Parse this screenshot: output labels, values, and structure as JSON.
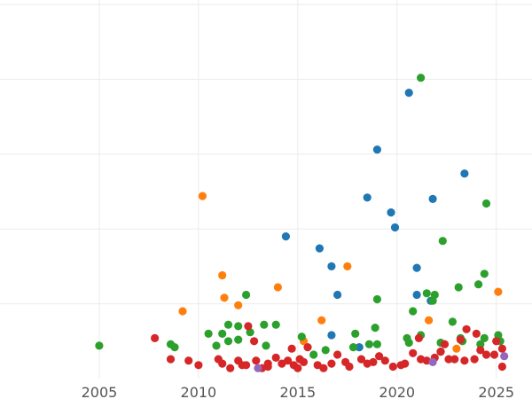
{
  "chart_data": {
    "type": "scatter",
    "title": "",
    "xlabel": "",
    "ylabel": "",
    "xlim": [
      2000,
      2026.8
    ],
    "ylim": [
      0,
      2.5
    ],
    "grid": true,
    "x_ticks": [
      2005,
      2010,
      2015,
      2020,
      2025
    ],
    "x_tick_labels": [
      "2005",
      "2010",
      "2015",
      "2020",
      "2025"
    ],
    "y_grid": [
      0.5,
      1.0,
      1.5,
      2.0,
      2.5
    ],
    "colors": {
      "blue": "#1f77b4",
      "orange": "#ff7f0e",
      "green": "#2ca02c",
      "red": "#d62728",
      "purple": "#9467bd"
    },
    "series": [
      {
        "color": "#1f77b4",
        "points": [
          [
            2014.4,
            0.95
          ],
          [
            2016.1,
            0.87
          ],
          [
            2016.7,
            0.75
          ],
          [
            2017.0,
            0.56
          ],
          [
            2016.7,
            0.29
          ],
          [
            2018.5,
            1.21
          ],
          [
            2019.0,
            1.53
          ],
          [
            2019.7,
            1.11
          ],
          [
            2019.9,
            1.01
          ],
          [
            2020.6,
            1.91
          ],
          [
            2021.0,
            0.74
          ],
          [
            2021.0,
            0.56
          ],
          [
            2021.7,
            0.52
          ],
          [
            2021.8,
            1.2
          ],
          [
            2023.4,
            1.37
          ],
          [
            2018.1,
            0.21
          ],
          [
            2022.2,
            0.18
          ]
        ]
      },
      {
        "color": "#ff7f0e",
        "points": [
          [
            2010.2,
            1.22
          ],
          [
            2009.2,
            0.45
          ],
          [
            2011.2,
            0.69
          ],
          [
            2011.3,
            0.54
          ],
          [
            2012.0,
            0.49
          ],
          [
            2014.0,
            0.61
          ],
          [
            2016.2,
            0.39
          ],
          [
            2017.5,
            0.75
          ],
          [
            2021.6,
            0.39
          ],
          [
            2025.1,
            0.58
          ],
          [
            2015.3,
            0.25
          ],
          [
            2023.0,
            0.2
          ]
        ]
      },
      {
        "color": "#2ca02c",
        "points": [
          [
            2005.0,
            0.22
          ],
          [
            2008.6,
            0.23
          ],
          [
            2008.8,
            0.21
          ],
          [
            2010.5,
            0.3
          ],
          [
            2010.9,
            0.22
          ],
          [
            2011.2,
            0.3
          ],
          [
            2011.5,
            0.36
          ],
          [
            2011.5,
            0.25
          ],
          [
            2012.0,
            0.35
          ],
          [
            2012.0,
            0.26
          ],
          [
            2012.4,
            0.56
          ],
          [
            2012.6,
            0.31
          ],
          [
            2013.3,
            0.36
          ],
          [
            2013.4,
            0.22
          ],
          [
            2013.9,
            0.36
          ],
          [
            2015.2,
            0.28
          ],
          [
            2015.8,
            0.16
          ],
          [
            2016.4,
            0.19
          ],
          [
            2017.9,
            0.3
          ],
          [
            2017.8,
            0.21
          ],
          [
            2018.6,
            0.23
          ],
          [
            2018.9,
            0.34
          ],
          [
            2019.0,
            0.53
          ],
          [
            2019.0,
            0.23
          ],
          [
            2020.5,
            0.27
          ],
          [
            2020.6,
            0.24
          ],
          [
            2020.8,
            0.45
          ],
          [
            2021.2,
            2.01
          ],
          [
            2021.2,
            0.29
          ],
          [
            2021.5,
            0.57
          ],
          [
            2021.8,
            0.52
          ],
          [
            2021.9,
            0.56
          ],
          [
            2022.2,
            0.24
          ],
          [
            2022.3,
            0.92
          ],
          [
            2022.8,
            0.38
          ],
          [
            2023.1,
            0.61
          ],
          [
            2023.2,
            0.27
          ],
          [
            2023.3,
            0.25
          ],
          [
            2024.1,
            0.63
          ],
          [
            2024.2,
            0.23
          ],
          [
            2024.4,
            0.7
          ],
          [
            2024.5,
            1.17
          ],
          [
            2024.4,
            0.27
          ],
          [
            2025.1,
            0.29
          ],
          [
            2025.2,
            0.25
          ]
        ]
      },
      {
        "color": "#d62728",
        "points": [
          [
            2007.8,
            0.27
          ],
          [
            2008.6,
            0.13
          ],
          [
            2009.5,
            0.12
          ],
          [
            2010.0,
            0.09
          ],
          [
            2011.0,
            0.13
          ],
          [
            2011.2,
            0.1
          ],
          [
            2011.6,
            0.07
          ],
          [
            2012.0,
            0.12
          ],
          [
            2012.2,
            0.09
          ],
          [
            2012.4,
            0.09
          ],
          [
            2012.5,
            0.35
          ],
          [
            2012.8,
            0.25
          ],
          [
            2012.9,
            0.12
          ],
          [
            2013.2,
            0.07
          ],
          [
            2013.5,
            0.1
          ],
          [
            2013.9,
            0.14
          ],
          [
            2014.2,
            0.1
          ],
          [
            2014.5,
            0.12
          ],
          [
            2014.8,
            0.09
          ],
          [
            2015.0,
            0.07
          ],
          [
            2015.3,
            0.11
          ],
          [
            2015.5,
            0.21
          ],
          [
            2016.0,
            0.09
          ],
          [
            2016.3,
            0.07
          ],
          [
            2016.7,
            0.1
          ],
          [
            2017.0,
            0.16
          ],
          [
            2017.4,
            0.11
          ],
          [
            2017.6,
            0.08
          ],
          [
            2018.2,
            0.13
          ],
          [
            2018.5,
            0.1
          ],
          [
            2018.8,
            0.11
          ],
          [
            2019.1,
            0.15
          ],
          [
            2019.4,
            0.12
          ],
          [
            2019.8,
            0.08
          ],
          [
            2020.2,
            0.09
          ],
          [
            2020.4,
            0.1
          ],
          [
            2020.8,
            0.17
          ],
          [
            2021.1,
            0.27
          ],
          [
            2021.2,
            0.13
          ],
          [
            2021.5,
            0.12
          ],
          [
            2021.9,
            0.14
          ],
          [
            2022.2,
            0.18
          ],
          [
            2022.4,
            0.23
          ],
          [
            2022.6,
            0.13
          ],
          [
            2022.9,
            0.13
          ],
          [
            2023.2,
            0.26
          ],
          [
            2023.4,
            0.12
          ],
          [
            2023.5,
            0.33
          ],
          [
            2023.9,
            0.13
          ],
          [
            2024.0,
            0.3
          ],
          [
            2024.2,
            0.19
          ],
          [
            2024.5,
            0.16
          ],
          [
            2024.9,
            0.16
          ],
          [
            2025.0,
            0.25
          ],
          [
            2025.3,
            0.2
          ],
          [
            2025.3,
            0.08
          ],
          [
            2013.5,
            0.08
          ],
          [
            2014.7,
            0.2
          ],
          [
            2015.1,
            0.13
          ]
        ]
      },
      {
        "color": "#9467bd",
        "points": [
          [
            2013.0,
            0.07
          ],
          [
            2021.8,
            0.11
          ],
          [
            2025.4,
            0.15
          ]
        ]
      }
    ]
  }
}
